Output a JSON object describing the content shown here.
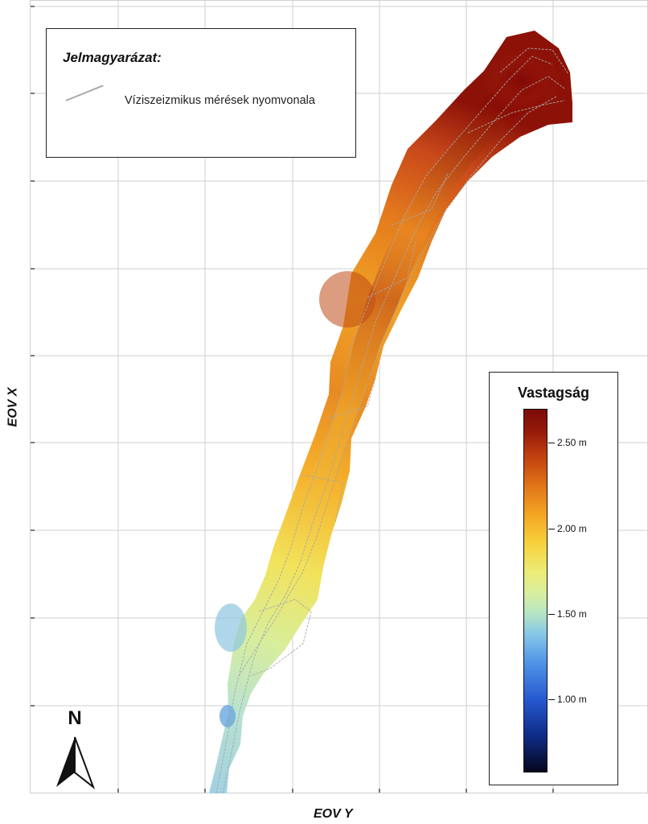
{
  "legend": {
    "title": "Jelmagyarázat:",
    "item_label": "Víziszeizmikus mérések nyomvonala",
    "line_color": "#a8a8a8"
  },
  "colorbar": {
    "title": "Vastagság",
    "ticks": [
      {
        "label": "2.50 m",
        "value": 2.5
      },
      {
        "label": "2.00 m",
        "value": 2.0
      },
      {
        "label": "1.50 m",
        "value": 1.5
      },
      {
        "label": "1.00 m",
        "value": 1.0
      }
    ],
    "range": [
      0.57,
      2.7
    ],
    "colors": [
      "#05071c",
      "#2659d0",
      "#86c7e8",
      "#d7eda0",
      "#f7d23c",
      "#e07418",
      "#7a0b08"
    ]
  },
  "axes": {
    "x_label": "EOV Y",
    "y_label": "EOV X"
  },
  "north_arrow": {
    "label": "N"
  },
  "map": {
    "grid": true,
    "grid_color": "#cfcfcf",
    "features": [
      "thickness-raster",
      "seismic-survey-tracks"
    ]
  }
}
